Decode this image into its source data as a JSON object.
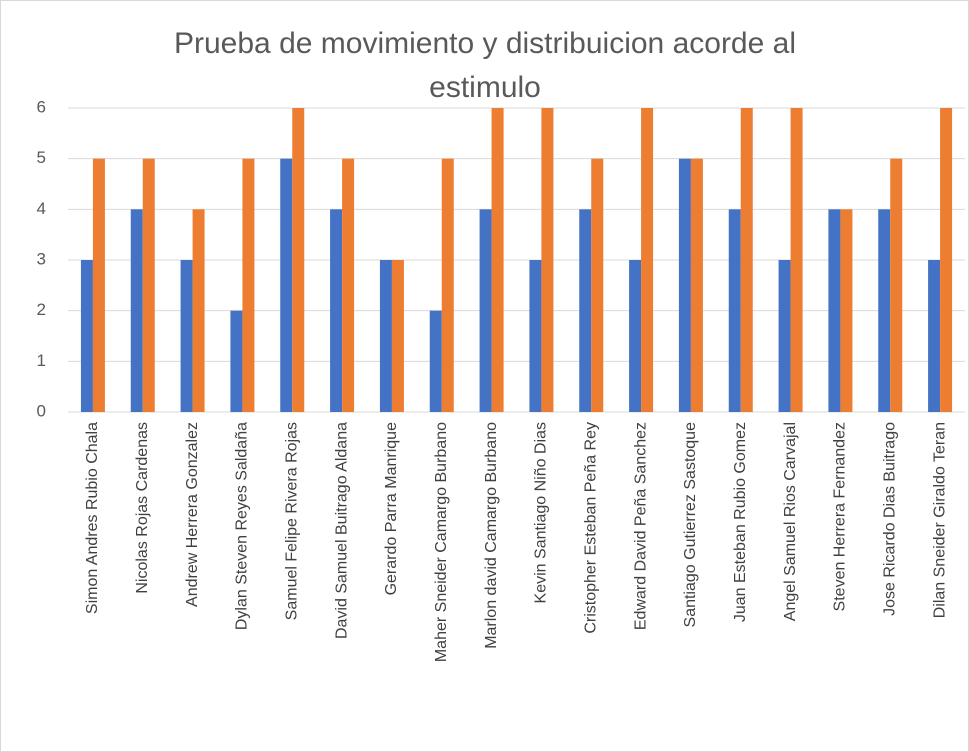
{
  "chart_data": {
    "type": "bar",
    "title": "Prueba de movimiento y distribuicion acorde al estimulo",
    "categories": [
      "Simon Andres Rubio Chala",
      "Nicolas Rojas Cardenas",
      "Andrew Herrera Gonzalez",
      "Dylan Steven Reyes Saldaña",
      "Samuel Felipe Rivera Rojas",
      "David Samuel Buitrago Aldana",
      "Gerardo Parra Manrique",
      "Maher Sneider Camargo Burbano",
      "Marlon david Camargo Burbano",
      "Kevin Santiago Niño Dias",
      "Cristopher Esteban Peña Rey",
      "Edward David Peña Sanchez",
      "Santiago Gutierrez Sastoque",
      "Juan Esteban Rubio Gomez",
      "Angel Samuel Rios Carvajal",
      "Steven Herrera Fernandez",
      "Jose Ricardo Dias Buitrago",
      "Dilan Sneider Giraldo Teran"
    ],
    "series": [
      {
        "color": "#4472c4",
        "values": [
          3,
          4,
          3,
          2,
          5,
          4,
          3,
          2,
          4,
          3,
          4,
          3,
          5,
          4,
          3,
          4,
          4,
          3
        ]
      },
      {
        "color": "#ed7d31",
        "values": [
          5,
          5,
          4,
          5,
          6,
          5,
          3,
          5,
          6,
          6,
          5,
          6,
          5,
          6,
          6,
          4,
          5,
          6
        ]
      }
    ],
    "ylim": [
      0,
      6
    ],
    "yticks": [
      0,
      1,
      2,
      3,
      4,
      5,
      6
    ],
    "grid": true
  }
}
